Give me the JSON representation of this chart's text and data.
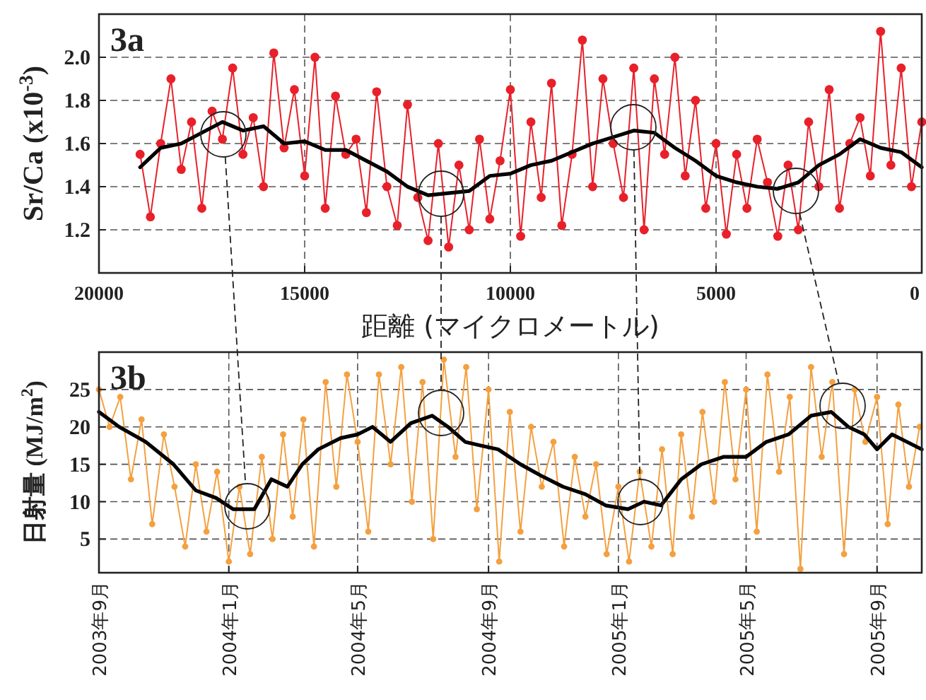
{
  "chart_data": [
    {
      "type": "line",
      "annotations": [
        "3a"
      ],
      "xlabel": "距離 (マイクロメートル)",
      "ylabel": "Sr/Ca (x10$^{-3}$)",
      "xlim": [
        20000,
        0
      ],
      "ylim": [
        1.0,
        2.2
      ],
      "grid": true,
      "xticks": [
        20000,
        15000,
        10000,
        5000,
        0
      ],
      "yticks": [
        {
          "value": 1.2,
          "label": "1.2"
        },
        {
          "value": 1.4,
          "label": "1.4"
        },
        {
          "value": 1.6,
          "label": "1.6"
        },
        {
          "value": 1.8,
          "label": "1.8"
        },
        {
          "value": 2,
          "label": "2.0"
        }
      ],
      "series": [
        {
          "color": "#e8202a",
          "marker": "circle",
          "x": [
            19000,
            18750,
            18500,
            18250,
            18000,
            17750,
            17500,
            17250,
            17000,
            16750,
            16500,
            16250,
            16000,
            15750,
            15500,
            15250,
            15000,
            14750,
            14500,
            14250,
            14000,
            13750,
            13500,
            13250,
            13000,
            12750,
            12500,
            12250,
            12000,
            11750,
            11500,
            11250,
            11000,
            10750,
            10500,
            10250,
            10000,
            9750,
            9500,
            9250,
            9000,
            8750,
            8500,
            8250,
            8000,
            7750,
            7500,
            7250,
            7000,
            6750,
            6500,
            6250,
            6000,
            5750,
            5500,
            5250,
            5000,
            4750,
            4500,
            4250,
            4000,
            3750,
            3500,
            3250,
            3000,
            2750,
            2500,
            2250,
            2000,
            1750,
            1500,
            1250,
            1000,
            750,
            500,
            250,
            0
          ],
          "values": [
            1.55,
            1.26,
            1.6,
            1.9,
            1.48,
            1.7,
            1.3,
            1.75,
            1.62,
            1.95,
            1.55,
            1.72,
            1.4,
            2.02,
            1.58,
            1.85,
            1.45,
            2.0,
            1.3,
            1.82,
            1.55,
            1.62,
            1.28,
            1.84,
            1.4,
            1.22,
            1.78,
            1.35,
            1.15,
            1.6,
            1.12,
            1.5,
            1.2,
            1.62,
            1.25,
            1.52,
            1.85,
            1.17,
            1.7,
            1.35,
            1.88,
            1.22,
            1.55,
            2.08,
            1.4,
            1.9,
            1.6,
            1.35,
            1.95,
            1.2,
            1.9,
            1.55,
            2.0,
            1.45,
            1.8,
            1.3,
            1.6,
            1.18,
            1.55,
            1.3,
            1.62,
            1.42,
            1.17,
            1.5,
            1.2,
            1.7,
            1.4,
            1.85,
            1.3,
            1.6,
            1.72,
            1.45,
            2.12,
            1.5,
            1.95,
            1.4,
            1.7
          ]
        },
        {
          "color": "#000000",
          "x": [
            19000,
            18500,
            18000,
            17500,
            17000,
            16500,
            16000,
            15500,
            15000,
            14500,
            14000,
            13500,
            13000,
            12500,
            12000,
            11500,
            11000,
            10500,
            10000,
            9500,
            9000,
            8500,
            8000,
            7500,
            7000,
            6500,
            6000,
            5500,
            5000,
            4500,
            4000,
            3500,
            3000,
            2500,
            2000,
            1500,
            1000,
            500,
            0
          ],
          "values": [
            1.49,
            1.58,
            1.6,
            1.65,
            1.7,
            1.66,
            1.68,
            1.6,
            1.61,
            1.57,
            1.57,
            1.52,
            1.47,
            1.4,
            1.36,
            1.37,
            1.38,
            1.45,
            1.46,
            1.5,
            1.52,
            1.56,
            1.6,
            1.63,
            1.66,
            1.65,
            1.58,
            1.52,
            1.45,
            1.42,
            1.4,
            1.39,
            1.42,
            1.5,
            1.55,
            1.62,
            1.58,
            1.56,
            1.49
          ]
        }
      ]
    },
    {
      "type": "line",
      "annotations": [
        "3b"
      ],
      "ylabel": "日射量 (MJ/m$^{2}$)",
      "xlim": [
        "2003-09-01",
        "2005-10-13"
      ],
      "ylim": [
        0.5,
        30
      ],
      "grid": true,
      "xticks": [
        {
          "value": "2003-09-01",
          "label": "2003年9月"
        },
        {
          "value": "2004-01-01",
          "label": "2004年1月"
        },
        {
          "value": "2004-05-01",
          "label": "2004年5月"
        },
        {
          "value": "2004-09-01",
          "label": "2004年9月"
        },
        {
          "value": "2005-01-01",
          "label": "2005年1月"
        },
        {
          "value": "2005-05-01",
          "label": "2005年5月"
        },
        {
          "value": "2005-09-01",
          "label": "2005年9月"
        }
      ],
      "yticks": [
        5,
        10,
        15,
        20,
        25
      ],
      "series": [
        {
          "color": "#f4a040",
          "marker": "circle",
          "x": [
            "2003-09-01",
            "2003-09-11",
            "2003-09-21",
            "2003-10-01",
            "2003-10-11",
            "2003-10-21",
            "2003-11-01",
            "2003-11-11",
            "2003-11-21",
            "2003-12-01",
            "2003-12-11",
            "2003-12-21",
            "2004-01-01",
            "2004-01-11",
            "2004-01-21",
            "2004-02-01",
            "2004-02-11",
            "2004-02-21",
            "2004-03-01",
            "2004-03-11",
            "2004-03-21",
            "2004-04-01",
            "2004-04-11",
            "2004-04-21",
            "2004-05-01",
            "2004-05-11",
            "2004-05-21",
            "2004-06-01",
            "2004-06-11",
            "2004-06-21",
            "2004-07-01",
            "2004-07-11",
            "2004-07-21",
            "2004-08-01",
            "2004-08-11",
            "2004-08-21",
            "2004-09-01",
            "2004-09-11",
            "2004-09-21",
            "2004-10-01",
            "2004-10-11",
            "2004-10-21",
            "2004-11-01",
            "2004-11-11",
            "2004-11-21",
            "2004-12-01",
            "2004-12-11",
            "2004-12-21",
            "2005-01-01",
            "2005-01-11",
            "2005-01-21",
            "2005-02-01",
            "2005-02-11",
            "2005-02-21",
            "2005-03-01",
            "2005-03-11",
            "2005-03-21",
            "2005-04-01",
            "2005-04-11",
            "2005-04-21",
            "2005-05-01",
            "2005-05-11",
            "2005-05-21",
            "2005-06-01",
            "2005-06-11",
            "2005-06-21",
            "2005-07-01",
            "2005-07-11",
            "2005-07-21",
            "2005-08-01",
            "2005-08-11",
            "2005-08-21",
            "2005-09-01",
            "2005-09-11",
            "2005-09-21",
            "2005-10-01",
            "2005-10-11"
          ],
          "values": [
            25,
            20,
            24,
            13,
            21,
            7,
            19,
            12,
            4,
            15,
            6,
            14,
            2,
            12,
            3,
            16,
            5,
            19,
            8,
            21,
            4,
            26,
            12,
            27,
            18,
            6,
            27,
            15,
            28,
            10,
            26,
            5,
            29,
            16,
            28,
            9,
            25,
            2,
            22,
            6,
            20,
            12,
            18,
            4,
            16,
            8,
            15,
            3,
            12,
            2,
            14,
            4,
            17,
            3,
            19,
            8,
            22,
            10,
            26,
            13,
            25,
            6,
            27,
            14,
            24,
            1,
            28,
            16,
            26,
            3,
            25,
            18,
            24,
            7,
            23,
            12,
            20
          ]
        },
        {
          "color": "#000000",
          "x": [
            "2003-09-01",
            "2003-09-20",
            "2003-10-15",
            "2003-11-10",
            "2003-12-01",
            "2003-12-20",
            "2004-01-05",
            "2004-01-25",
            "2004-02-10",
            "2004-02-25",
            "2004-03-10",
            "2004-03-25",
            "2004-04-15",
            "2004-05-01",
            "2004-05-15",
            "2004-06-01",
            "2004-06-20",
            "2004-07-10",
            "2004-07-25",
            "2004-08-10",
            "2004-08-25",
            "2004-09-10",
            "2004-10-01",
            "2004-10-20",
            "2004-11-10",
            "2004-12-01",
            "2004-12-20",
            "2005-01-10",
            "2005-01-25",
            "2005-02-10",
            "2005-03-01",
            "2005-03-20",
            "2005-04-10",
            "2005-05-01",
            "2005-05-20",
            "2005-06-10",
            "2005-07-01",
            "2005-07-20",
            "2005-08-05",
            "2005-08-20",
            "2005-09-01",
            "2005-09-15",
            "2005-10-13"
          ],
          "values": [
            22,
            20,
            18,
            15,
            11.5,
            10.5,
            9,
            9,
            13,
            12,
            15,
            17,
            18.5,
            19,
            20,
            18,
            20.5,
            21.5,
            20,
            18,
            17.5,
            17,
            15,
            13.5,
            12,
            11,
            9.5,
            9,
            10,
            9.5,
            13,
            15,
            16,
            16,
            18,
            19,
            21.5,
            22,
            20,
            19,
            17,
            19,
            17
          ]
        }
      ]
    }
  ]
}
